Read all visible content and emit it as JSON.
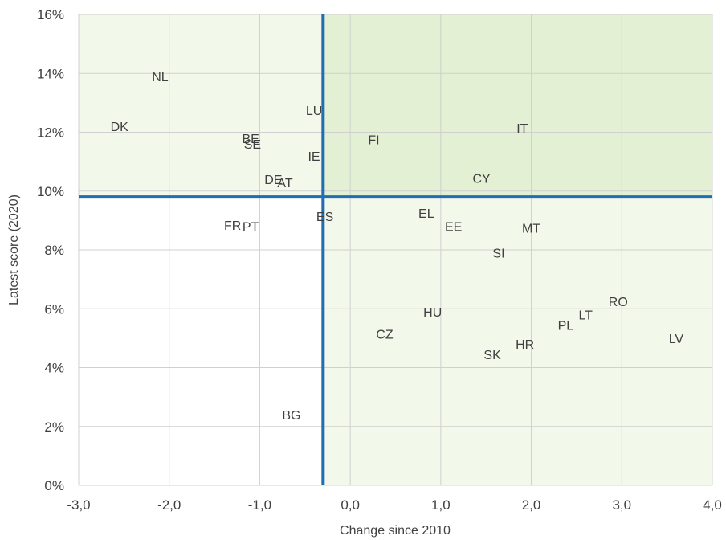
{
  "chart_data": {
    "type": "scatter",
    "title": "",
    "xlabel": "Change since 2010",
    "ylabel": "Latest score (2020)",
    "xlim": [
      -3.0,
      4.0
    ],
    "ylim": [
      0,
      16
    ],
    "x_ticks": [
      -3,
      -2,
      -1,
      0,
      1,
      2,
      3,
      4
    ],
    "x_tick_labels": [
      "-3,0",
      "-2,0",
      "-1,0",
      "0,0",
      "1,0",
      "2,0",
      "3,0",
      "4,0"
    ],
    "y_ticks": [
      0,
      2,
      4,
      6,
      8,
      10,
      12,
      14,
      16
    ],
    "y_tick_labels": [
      "0%",
      "2%",
      "4%",
      "6%",
      "8%",
      "10%",
      "12%",
      "14%",
      "16%"
    ],
    "grid": true,
    "reference_lines": {
      "x": -0.3,
      "y": 9.8
    },
    "quadrant_colors": {
      "top_left": "#f2f8ea",
      "top_right": "#e3f0d3",
      "bottom_right": "#f2f8ea",
      "bottom_left": "#ffffff"
    },
    "reference_line_color": "#1f6eb4",
    "grid_color": "#d0d0d0",
    "points": [
      {
        "label": "NL",
        "x": -2.1,
        "y": 13.9
      },
      {
        "label": "DK",
        "x": -2.55,
        "y": 12.2
      },
      {
        "label": "BE",
        "x": -1.1,
        "y": 11.8
      },
      {
        "label": "SE",
        "x": -1.08,
        "y": 11.6
      },
      {
        "label": "LU",
        "x": -0.4,
        "y": 12.75
      },
      {
        "label": "IE",
        "x": -0.4,
        "y": 11.2
      },
      {
        "label": "DE",
        "x": -0.85,
        "y": 10.4
      },
      {
        "label": "AT",
        "x": -0.72,
        "y": 10.3
      },
      {
        "label": "FR",
        "x": -1.3,
        "y": 8.85
      },
      {
        "label": "PT",
        "x": -1.1,
        "y": 8.8
      },
      {
        "label": "ES",
        "x": -0.28,
        "y": 9.15
      },
      {
        "label": "BG",
        "x": -0.65,
        "y": 2.4
      },
      {
        "label": "FI",
        "x": 0.26,
        "y": 11.75
      },
      {
        "label": "IT",
        "x": 1.9,
        "y": 12.15
      },
      {
        "label": "CY",
        "x": 1.45,
        "y": 10.45
      },
      {
        "label": "EL",
        "x": 0.84,
        "y": 9.25
      },
      {
        "label": "EE",
        "x": 1.14,
        "y": 8.8
      },
      {
        "label": "MT",
        "x": 2.0,
        "y": 8.75
      },
      {
        "label": "SI",
        "x": 1.64,
        "y": 7.9
      },
      {
        "label": "HU",
        "x": 0.91,
        "y": 5.9
      },
      {
        "label": "CZ",
        "x": 0.38,
        "y": 5.15
      },
      {
        "label": "SK",
        "x": 1.57,
        "y": 4.45
      },
      {
        "label": "HR",
        "x": 1.93,
        "y": 4.8
      },
      {
        "label": "PL",
        "x": 2.38,
        "y": 5.45
      },
      {
        "label": "LT",
        "x": 2.6,
        "y": 5.8
      },
      {
        "label": "RO",
        "x": 2.96,
        "y": 6.25
      },
      {
        "label": "LV",
        "x": 3.6,
        "y": 5.0
      }
    ]
  }
}
